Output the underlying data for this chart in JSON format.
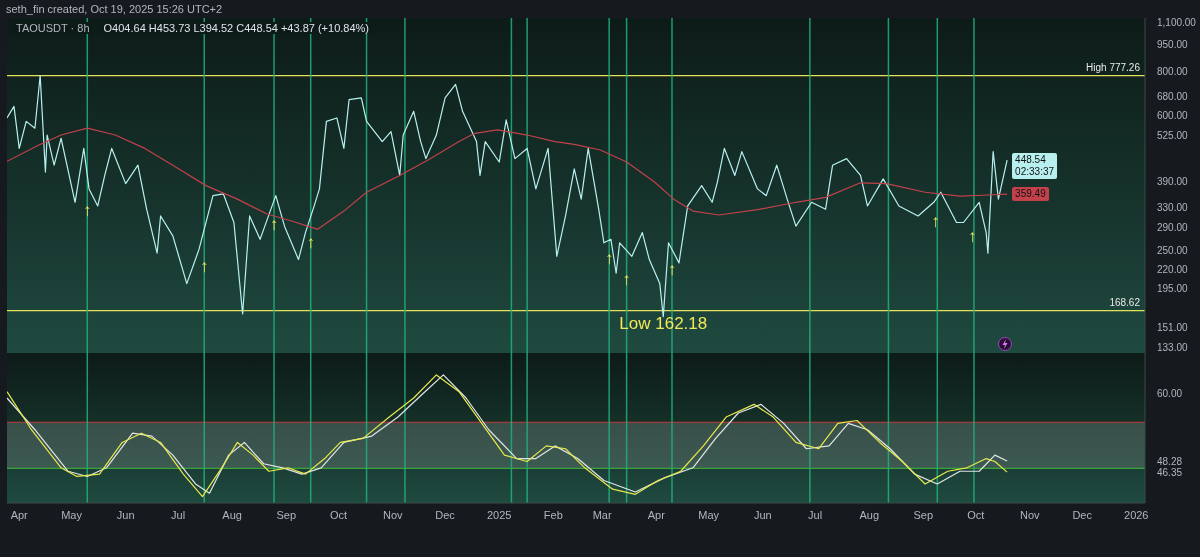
{
  "chart_data": [
    {
      "type": "line",
      "title": "TAOUSDT · 8h",
      "subtitle": "O404.64 H453.73 L394.52 C448.54 +43.87 (+10.84%)",
      "log": true,
      "tick_labels": "y",
      "legend": false,
      "grid": false,
      "xlim": [
        "2024-03-25",
        "2026-01-06"
      ],
      "ylim": [
        128,
        1130
      ],
      "yticks": [
        {
          "value": 1100,
          "label": "1,100.00"
        },
        {
          "value": 950,
          "label": "950.00"
        },
        {
          "value": 800,
          "label": "800.00"
        },
        {
          "value": 680,
          "label": "680.00"
        },
        {
          "value": 600,
          "label": "600.00"
        },
        {
          "value": 525,
          "label": "525.00"
        },
        {
          "value": 390,
          "label": "390.00"
        },
        {
          "value": 330,
          "label": "330.00"
        },
        {
          "value": 290,
          "label": "290.00"
        },
        {
          "value": 250,
          "label": "250.00"
        },
        {
          "value": 220,
          "label": "220.00"
        },
        {
          "value": 195,
          "label": "195.00"
        },
        {
          "value": 151,
          "label": "151.00"
        },
        {
          "value": 133,
          "label": "133.00"
        }
      ],
      "series": [
        {
          "color": "#b8f0f0",
          "x": [
            "2024-03-25",
            "2024-03-29",
            "2024-04-01",
            "2024-04-05",
            "2024-04-10",
            "2024-04-13",
            "2024-04-16",
            "2024-04-17",
            "2024-04-21",
            "2024-04-25",
            "2024-05-03",
            "2024-05-08",
            "2024-05-11",
            "2024-05-16",
            "2024-05-20",
            "2024-05-24",
            "2024-06-01",
            "2024-06-08",
            "2024-06-13",
            "2024-06-19",
            "2024-06-21",
            "2024-06-28",
            "2024-07-06",
            "2024-07-13",
            "2024-07-21",
            "2024-07-27",
            "2024-08-02",
            "2024-08-07",
            "2024-08-11",
            "2024-08-17",
            "2024-08-26",
            "2024-08-31",
            "2024-09-08",
            "2024-09-12",
            "2024-09-17",
            "2024-09-20",
            "2024-09-24",
            "2024-09-30",
            "2024-10-04",
            "2024-10-07",
            "2024-10-14",
            "2024-10-17",
            "2024-10-26",
            "2024-10-31",
            "2024-11-05",
            "2024-11-07",
            "2024-11-13",
            "2024-11-17",
            "2024-11-20",
            "2024-11-26",
            "2024-12-01",
            "2024-12-07",
            "2024-12-11",
            "2024-12-19",
            "2024-12-21",
            "2024-12-24",
            "2025-01-01",
            "2025-01-05",
            "2025-01-10",
            "2025-01-17",
            "2025-01-22",
            "2025-01-29",
            "2025-02-03",
            "2025-02-08",
            "2025-02-13",
            "2025-02-17",
            "2025-02-21",
            "2025-02-27",
            "2025-03-02",
            "2025-03-06",
            "2025-03-09",
            "2025-03-11",
            "2025-03-18",
            "2025-03-24",
            "2025-03-28",
            "2025-04-03",
            "2025-04-05",
            "2025-04-08",
            "2025-04-14",
            "2025-04-19",
            "2025-04-27",
            "2025-05-03",
            "2025-05-06",
            "2025-05-10",
            "2025-05-16",
            "2025-05-20",
            "2025-05-29",
            "2025-06-03",
            "2025-06-09",
            "2025-06-15",
            "2025-06-20",
            "2025-06-29",
            "2025-07-07",
            "2025-07-11",
            "2025-07-19",
            "2025-07-27",
            "2025-07-31",
            "2025-08-09",
            "2025-08-18",
            "2025-08-29",
            "2025-09-07",
            "2025-09-11",
            "2025-09-20",
            "2025-09-24",
            "2025-10-03",
            "2025-10-07",
            "2025-10-08",
            "2025-10-11",
            "2025-10-14",
            "2025-10-19"
          ],
          "values": [
            590,
            636,
            484,
            577,
            552,
            777.26,
            415,
            528,
            434,
            517,
            341,
            484,
            372,
            333,
            406,
            484,
            385,
            434,
            326,
            245,
            312,
            274,
            201,
            251,
            356,
            360,
            299,
            165,
            312,
            268,
            356,
            292,
            235,
            280,
            333,
            372,
            577,
            590,
            484,
            665,
            672,
            577,
            506,
            540,
            406,
            528,
            616,
            506,
            453,
            528,
            672,
            734,
            616,
            506,
            406,
            506,
            443,
            583,
            453,
            484,
            372,
            484,
            240,
            312,
            424,
            348,
            484,
            326,
            262,
            268,
            215,
            262,
            240,
            280,
            235,
            201,
            162.18,
            262,
            230,
            333,
            380,
            341,
            389,
            484,
            406,
            474,
            372,
            356,
            434,
            348,
            292,
            341,
            326,
            434,
            453,
            406,
            333,
            397,
            333,
            312,
            341,
            364,
            299,
            299,
            341,
            280,
            245,
            474,
            348,
            448.54
          ],
          "value_labels": [
            null,
            null,
            null,
            null,
            null,
            null,
            null,
            null,
            null,
            null,
            null,
            null,
            null,
            null,
            null,
            null,
            null,
            null,
            null,
            null,
            null,
            null,
            null,
            null,
            null,
            null,
            null,
            null,
            null,
            null,
            null,
            null,
            null,
            null,
            null,
            null,
            null,
            null,
            null,
            null,
            null,
            null,
            null,
            null,
            null,
            null,
            null,
            null,
            null,
            null,
            null,
            null,
            null,
            null,
            null,
            null,
            null,
            null,
            null,
            null,
            null,
            null,
            null,
            null,
            null,
            null,
            null,
            null,
            null,
            null,
            null,
            null,
            null,
            null,
            null,
            null,
            null,
            null,
            null,
            null,
            null,
            null,
            null,
            null,
            null,
            null,
            null,
            null,
            null,
            null,
            null,
            null,
            null,
            null,
            null,
            null,
            null,
            null,
            null,
            null,
            null,
            null,
            null,
            null,
            null,
            null,
            null,
            null,
            null,
            "448.54"
          ]
        },
        {
          "color": "#c2414b",
          "x": [
            "2024-03-25",
            "2024-04-12",
            "2024-04-25",
            "2024-05-10",
            "2024-05-26",
            "2024-06-12",
            "2024-06-28",
            "2024-07-17",
            "2024-08-04",
            "2024-08-21",
            "2024-09-04",
            "2024-09-19",
            "2024-10-04",
            "2024-10-17",
            "2024-11-05",
            "2024-11-21",
            "2024-12-09",
            "2024-12-18",
            "2024-12-31",
            "2025-01-17",
            "2025-02-02",
            "2025-02-13",
            "2025-02-28",
            "2025-03-15",
            "2025-03-31",
            "2025-04-11",
            "2025-04-22",
            "2025-05-07",
            "2025-05-29",
            "2025-06-20",
            "2025-07-07",
            "2025-07-27",
            "2025-08-11",
            "2025-09-02",
            "2025-09-22",
            "2025-10-05",
            "2025-10-19"
          ],
          "values": [
            445,
            494,
            528,
            552,
            528,
            484,
            434,
            380,
            348,
            316,
            302,
            286,
            322,
            364,
            406,
            448,
            506,
            534,
            546,
            528,
            506,
            497,
            479,
            443,
            389,
            348,
            322,
            314,
            325,
            341,
            352,
            387,
            385,
            364,
            355,
            357,
            359.49
          ],
          "value_labels": [
            null,
            null,
            null,
            null,
            null,
            null,
            null,
            null,
            null,
            null,
            null,
            null,
            null,
            null,
            null,
            null,
            null,
            null,
            null,
            null,
            null,
            null,
            null,
            null,
            null,
            null,
            null,
            null,
            null,
            null,
            null,
            null,
            null,
            null,
            null,
            null,
            "359.49"
          ]
        }
      ],
      "ref_lines": [
        {
          "axis": "y",
          "value": 777.26,
          "label": "High 777.26",
          "color": "#e5e25a"
        },
        {
          "axis": "y",
          "value": 168.62,
          "label": "168.62",
          "color": "#e5e25a"
        },
        {
          "axis": "x",
          "value": "2024-05-10",
          "color": "#22b07d"
        },
        {
          "axis": "x",
          "value": "2024-07-16",
          "color": "#22b07d"
        },
        {
          "axis": "x",
          "value": "2024-08-25",
          "color": "#22b07d"
        },
        {
          "axis": "x",
          "value": "2024-09-15",
          "color": "#22b07d"
        },
        {
          "axis": "x",
          "value": "2024-10-17",
          "color": "#22b07d"
        },
        {
          "axis": "x",
          "value": "2024-11-08",
          "color": "#22b07d"
        },
        {
          "axis": "x",
          "value": "2025-01-08",
          "color": "#22b07d"
        },
        {
          "axis": "x",
          "value": "2025-01-17",
          "color": "#22b07d"
        },
        {
          "axis": "x",
          "value": "2025-03-05",
          "color": "#22b07d"
        },
        {
          "axis": "x",
          "value": "2025-03-15",
          "color": "#22b07d"
        },
        {
          "axis": "x",
          "value": "2025-04-10",
          "color": "#22b07d"
        },
        {
          "axis": "x",
          "value": "2025-06-28",
          "color": "#22b07d"
        },
        {
          "axis": "x",
          "value": "2025-08-12",
          "color": "#22b07d"
        },
        {
          "axis": "x",
          "value": "2025-09-09",
          "color": "#22b07d"
        },
        {
          "axis": "x",
          "value": "2025-09-30",
          "color": "#22b07d"
        }
      ],
      "annotations": [
        "seth_fin created, Oct 19, 2025 15:26 UTC+2",
        "02:33:37",
        {
          "text": "Low 162.18",
          "x": "2025-04-05",
          "y": 162.18
        },
        {
          "text": "↑",
          "x": "2024-05-10",
          "y": 337
        },
        {
          "text": "↑",
          "x": "2024-07-16",
          "y": 235
        },
        {
          "text": "↑",
          "x": "2024-08-25",
          "y": 307
        },
        {
          "text": "↑",
          "x": "2024-09-15",
          "y": 274
        },
        {
          "text": "↑",
          "x": "2025-03-05",
          "y": 247
        },
        {
          "text": "↑",
          "x": "2025-03-15",
          "y": 216
        },
        {
          "text": "↑",
          "x": "2025-04-10",
          "y": 230
        },
        {
          "text": "↑",
          "x": "2025-09-08",
          "y": 314
        },
        {
          "text": "↑",
          "x": "2025-09-29",
          "y": 284
        }
      ]
    },
    {
      "type": "line",
      "legend": false,
      "grid": false,
      "xlim": [
        "2024-03-25",
        "2026-01-06"
      ],
      "ylim": [
        41,
        67
      ],
      "xticks": [
        {
          "value": "2024-04-01",
          "label": "Apr"
        },
        {
          "value": "2024-05-01",
          "label": "May"
        },
        {
          "value": "2024-06-01",
          "label": "Jun"
        },
        {
          "value": "2024-07-01",
          "label": "Jul"
        },
        {
          "value": "2024-08-01",
          "label": "Aug"
        },
        {
          "value": "2024-09-01",
          "label": "Sep"
        },
        {
          "value": "2024-10-01",
          "label": "Oct"
        },
        {
          "value": "2024-11-01",
          "label": "Nov"
        },
        {
          "value": "2024-12-01",
          "label": "Dec"
        },
        {
          "value": "2025-01-01",
          "label": "2025"
        },
        {
          "value": "2025-02-01",
          "label": "Feb"
        },
        {
          "value": "2025-03-01",
          "label": "Mar"
        },
        {
          "value": "2025-04-01",
          "label": "Apr"
        },
        {
          "value": "2025-05-01",
          "label": "May"
        },
        {
          "value": "2025-06-01",
          "label": "Jun"
        },
        {
          "value": "2025-07-01",
          "label": "Jul"
        },
        {
          "value": "2025-08-01",
          "label": "Aug"
        },
        {
          "value": "2025-09-01",
          "label": "Sep"
        },
        {
          "value": "2025-10-01",
          "label": "Oct"
        },
        {
          "value": "2025-11-01",
          "label": "Nov"
        },
        {
          "value": "2025-12-01",
          "label": "Dec"
        },
        {
          "value": "2026-01-01",
          "label": "2026"
        }
      ],
      "yticks": [
        {
          "value": 60,
          "label": "60.00"
        },
        {
          "value": 48.28,
          "label": "48.28"
        },
        {
          "value": 46.35,
          "label": "46.35"
        }
      ],
      "series": [
        {
          "color": "#e0e6e6",
          "x": [
            "2024-03-25",
            "2024-04-10",
            "2024-04-29",
            "2024-05-10",
            "2024-05-21",
            "2024-06-05",
            "2024-06-16",
            "2024-06-28",
            "2024-07-11",
            "2024-07-19",
            "2024-07-30",
            "2024-08-08",
            "2024-08-19",
            "2024-08-30",
            "2024-09-10",
            "2024-09-21",
            "2024-10-04",
            "2024-10-20",
            "2024-11-04",
            "2024-11-17",
            "2024-11-30",
            "2024-12-13",
            "2024-12-26",
            "2025-01-11",
            "2025-01-22",
            "2025-02-02",
            "2025-02-15",
            "2025-03-02",
            "2025-03-20",
            "2025-04-06",
            "2025-04-22",
            "2025-05-05",
            "2025-05-18",
            "2025-05-31",
            "2025-06-13",
            "2025-06-26",
            "2025-07-09",
            "2025-07-20",
            "2025-07-31",
            "2025-08-13",
            "2025-08-27",
            "2025-09-09",
            "2025-09-22",
            "2025-10-03",
            "2025-10-12",
            "2025-10-19"
          ],
          "values": [
            59.2,
            53.7,
            46.5,
            45.6,
            47.1,
            53.1,
            52.6,
            49.3,
            44.3,
            42.7,
            49.3,
            51.5,
            47.8,
            47.1,
            46.0,
            47.1,
            51.5,
            52.6,
            55.9,
            59.6,
            63.2,
            59.2,
            53.7,
            48.7,
            48.7,
            50.9,
            48.7,
            44.9,
            42.9,
            45.4,
            47.1,
            52.2,
            56.6,
            58.1,
            54.8,
            50.4,
            50.9,
            54.8,
            53.7,
            50.4,
            46.0,
            44.3,
            46.5,
            46.5,
            49.3,
            48.28
          ],
          "value_labels": [
            null,
            null,
            null,
            null,
            null,
            null,
            null,
            null,
            null,
            null,
            null,
            null,
            null,
            null,
            null,
            null,
            null,
            null,
            null,
            null,
            null,
            null,
            null,
            null,
            null,
            null,
            null,
            null,
            null,
            null,
            null,
            null,
            null,
            null,
            null,
            null,
            null,
            null,
            null,
            null,
            null,
            null,
            null,
            null,
            null,
            null
          ]
        },
        {
          "color": "#e8e84a",
          "x": [
            "2024-03-25",
            "2024-04-08",
            "2024-04-25",
            "2024-05-04",
            "2024-05-17",
            "2024-05-30",
            "2024-06-10",
            "2024-06-21",
            "2024-07-04",
            "2024-07-15",
            "2024-07-26",
            "2024-08-04",
            "2024-08-13",
            "2024-08-22",
            "2024-09-02",
            "2024-09-12",
            "2024-09-23",
            "2024-10-02",
            "2024-10-15",
            "2024-10-30",
            "2024-11-13",
            "2024-11-26",
            "2024-12-09",
            "2024-12-22",
            "2025-01-04",
            "2025-01-17",
            "2025-01-28",
            "2025-02-08",
            "2025-02-19",
            "2025-03-07",
            "2025-03-20",
            "2025-04-02",
            "2025-04-15",
            "2025-04-28",
            "2025-05-11",
            "2025-05-27",
            "2025-06-07",
            "2025-06-20",
            "2025-07-03",
            "2025-07-14",
            "2025-07-25",
            "2025-08-07",
            "2025-08-20",
            "2025-09-02",
            "2025-09-15",
            "2025-09-26",
            "2025-10-07",
            "2025-10-12",
            "2025-10-19"
          ],
          "values": [
            60.3,
            53.7,
            47.1,
            45.6,
            46.0,
            51.5,
            53.1,
            51.5,
            46.0,
            42.1,
            47.1,
            51.5,
            49.3,
            46.5,
            47.1,
            46.0,
            48.7,
            51.5,
            52.2,
            55.9,
            59.2,
            63.2,
            60.3,
            54.8,
            49.3,
            48.2,
            50.9,
            50.4,
            47.1,
            43.4,
            42.5,
            44.9,
            46.5,
            50.9,
            55.9,
            58.1,
            55.9,
            51.5,
            50.4,
            54.8,
            55.3,
            51.5,
            48.2,
            44.3,
            46.5,
            47.1,
            48.7,
            48.2,
            46.35
          ],
          "value_labels": [
            null,
            null,
            null,
            null,
            null,
            null,
            null,
            null,
            null,
            null,
            null,
            null,
            null,
            null,
            null,
            null,
            null,
            null,
            null,
            null,
            null,
            null,
            null,
            null,
            null,
            null,
            null,
            null,
            null,
            null,
            null,
            null,
            null,
            null,
            null,
            null,
            null,
            null,
            null,
            null,
            null,
            null,
            null,
            null,
            null,
            null,
            null,
            null,
            null
          ]
        }
      ],
      "bands": [
        {
          "axis": "y",
          "from": 47,
          "to": 55,
          "color": "#8a9a96"
        }
      ],
      "ref_lines": [
        {
          "axis": "y",
          "value": 55,
          "color": "#c23a3a"
        },
        {
          "axis": "y",
          "value": 47,
          "color": "#3aa33a"
        },
        {
          "axis": "x",
          "value": "2024-05-10",
          "color": "#22b07d"
        },
        {
          "axis": "x",
          "value": "2024-07-16",
          "color": "#22b07d"
        },
        {
          "axis": "x",
          "value": "2024-08-25",
          "color": "#22b07d"
        },
        {
          "axis": "x",
          "value": "2024-09-15",
          "color": "#22b07d"
        },
        {
          "axis": "x",
          "value": "2024-10-17",
          "color": "#22b07d"
        },
        {
          "axis": "x",
          "value": "2024-11-08",
          "color": "#22b07d"
        },
        {
          "axis": "x",
          "value": "2025-01-08",
          "color": "#22b07d"
        },
        {
          "axis": "x",
          "value": "2025-01-17",
          "color": "#22b07d"
        },
        {
          "axis": "x",
          "value": "2025-03-05",
          "color": "#22b07d"
        },
        {
          "axis": "x",
          "value": "2025-03-15",
          "color": "#22b07d"
        },
        {
          "axis": "x",
          "value": "2025-04-10",
          "color": "#22b07d"
        },
        {
          "axis": "x",
          "value": "2025-06-28",
          "color": "#22b07d"
        },
        {
          "axis": "x",
          "value": "2025-08-12",
          "color": "#22b07d"
        },
        {
          "axis": "x",
          "value": "2025-09-09",
          "color": "#22b07d"
        },
        {
          "axis": "x",
          "value": "2025-09-30",
          "color": "#22b07d"
        }
      ]
    }
  ]
}
